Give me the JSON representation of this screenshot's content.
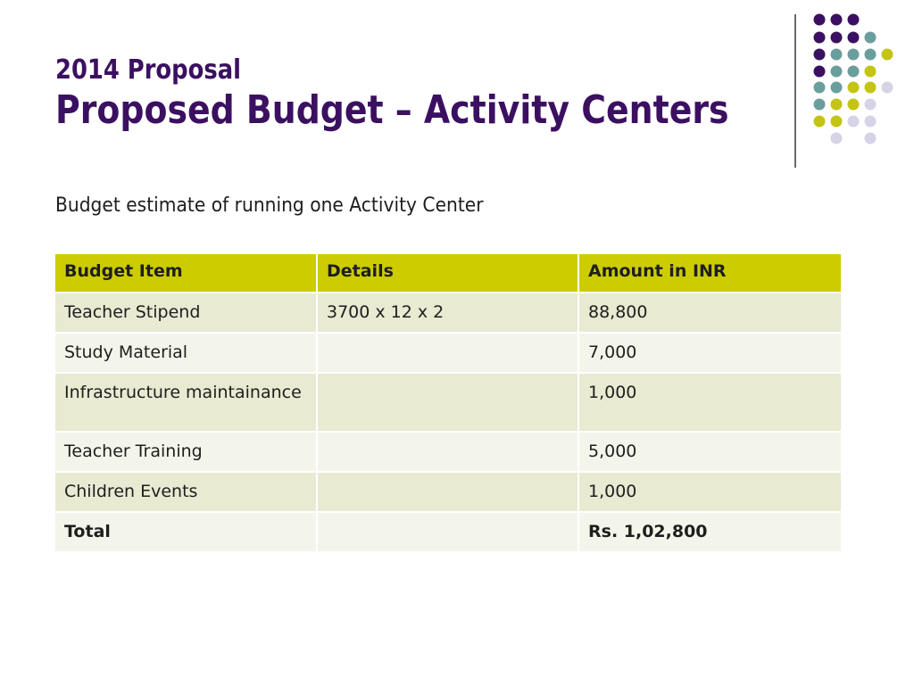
{
  "slide": {
    "supertitle": "2014 Proposal",
    "title": "Proposed Budget – Activity Centers",
    "subtitle": "Budget estimate of running one Activity Center"
  },
  "table": {
    "headers": [
      "Budget Item",
      "Details",
      "Amount in INR"
    ],
    "rows": [
      {
        "item": "Teacher Stipend",
        "details": "3700 x 12 x 2",
        "amount": "88,800"
      },
      {
        "item": "Study Material",
        "details": "",
        "amount": "7,000"
      },
      {
        "item": "Infrastructure maintainance",
        "details": "",
        "amount": "1,000"
      },
      {
        "item": "Teacher Training",
        "details": "",
        "amount": "5,000"
      },
      {
        "item": "Children Events",
        "details": "",
        "amount": "1,000"
      },
      {
        "item": "Total",
        "details": "",
        "amount": "Rs. 1,02,800"
      }
    ]
  },
  "colors": {
    "title": "#3b1061",
    "header_fill": "#cccc00",
    "row_fill_a": "#e8ead2",
    "row_fill_b": "#f4f5ea",
    "dot_purple": "#3b1061",
    "dot_teal": "#6a9e9c",
    "dot_lime": "#c4c414",
    "dot_lavender": "#d6d3e6"
  }
}
